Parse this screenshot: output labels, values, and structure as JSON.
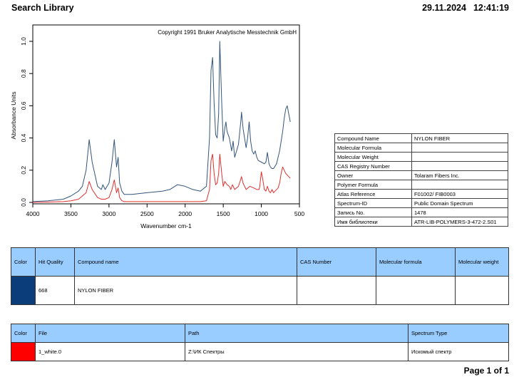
{
  "header": {
    "title": "Search Library",
    "date": "29.11.2024",
    "time": "12:41:19"
  },
  "chart_data": {
    "type": "line",
    "copyright": "Copyright 1991 Bruker Analytische Messtechnik GmbH",
    "xlabel": "Wavenumber cm-1",
    "ylabel": "Absorbance Units",
    "xlim": [
      4000,
      500
    ],
    "ylim": [
      0,
      1.0
    ],
    "xticks": [
      "4000",
      "3500",
      "3000",
      "2500",
      "2000",
      "1500",
      "1000",
      "500"
    ],
    "yticks": [
      "0.0",
      "0.2",
      "0.4",
      "0.6",
      "0.8",
      "1.0"
    ],
    "series": [
      {
        "color": "#33557a",
        "x": [
          4000,
          3800,
          3600,
          3500,
          3400,
          3350,
          3300,
          3260,
          3220,
          3150,
          3100,
          3080,
          3050,
          3000,
          2960,
          2930,
          2900,
          2880,
          2860,
          2830,
          2800,
          2700,
          2500,
          2300,
          2200,
          2100,
          2000,
          1900,
          1800,
          1720,
          1680,
          1660,
          1640,
          1620,
          1600,
          1580,
          1560,
          1545,
          1520,
          1500,
          1480,
          1465,
          1450,
          1420,
          1390,
          1370,
          1350,
          1300,
          1270,
          1260,
          1240,
          1200,
          1180,
          1160,
          1140,
          1120,
          1100,
          1080,
          1060,
          1040,
          1000,
          960,
          940,
          920,
          900,
          880,
          860,
          840,
          800,
          760,
          720,
          700,
          690,
          680,
          660,
          640,
          620
        ],
        "y": [
          0.005,
          0.01,
          0.02,
          0.04,
          0.07,
          0.1,
          0.2,
          0.39,
          0.25,
          0.1,
          0.08,
          0.11,
          0.08,
          0.12,
          0.25,
          0.39,
          0.22,
          0.28,
          0.12,
          0.07,
          0.05,
          0.05,
          0.06,
          0.07,
          0.08,
          0.11,
          0.1,
          0.08,
          0.07,
          0.1,
          0.4,
          0.82,
          0.9,
          0.62,
          0.42,
          0.4,
          0.55,
          1.0,
          0.62,
          0.38,
          0.46,
          0.5,
          0.44,
          0.4,
          0.32,
          0.38,
          0.28,
          0.36,
          0.5,
          0.56,
          0.46,
          0.34,
          0.4,
          0.5,
          0.38,
          0.32,
          0.3,
          0.32,
          0.28,
          0.26,
          0.25,
          0.24,
          0.25,
          0.31,
          0.24,
          0.22,
          0.21,
          0.21,
          0.24,
          0.32,
          0.44,
          0.52,
          0.55,
          0.58,
          0.6,
          0.55,
          0.5
        ]
      },
      {
        "color": "#e03030",
        "x": [
          4000,
          3800,
          3600,
          3500,
          3400,
          3350,
          3300,
          3260,
          3220,
          3150,
          3100,
          3050,
          3000,
          2960,
          2930,
          2900,
          2880,
          2860,
          2830,
          2800,
          2600,
          2400,
          2200,
          2000,
          1800,
          1720,
          1680,
          1660,
          1640,
          1620,
          1600,
          1580,
          1560,
          1545,
          1520,
          1500,
          1480,
          1450,
          1420,
          1400,
          1380,
          1350,
          1300,
          1280,
          1260,
          1240,
          1200,
          1150,
          1100,
          1060,
          1030,
          1020,
          1000,
          980,
          960,
          940,
          920,
          900,
          880,
          860,
          840,
          820,
          780,
          760,
          740,
          720,
          700,
          680,
          660,
          640,
          620
        ],
        "y": [
          0.0,
          0.002,
          0.005,
          0.01,
          0.02,
          0.04,
          0.06,
          0.13,
          0.08,
          0.03,
          0.02,
          0.02,
          0.03,
          0.08,
          0.14,
          0.06,
          0.09,
          0.03,
          0.01,
          0.005,
          0.005,
          0.005,
          0.005,
          0.005,
          0.005,
          0.01,
          0.08,
          0.26,
          0.3,
          0.18,
          0.11,
          0.12,
          0.18,
          0.3,
          0.18,
          0.1,
          0.13,
          0.11,
          0.1,
          0.08,
          0.11,
          0.08,
          0.1,
          0.13,
          0.16,
          0.12,
          0.08,
          0.1,
          0.09,
          0.08,
          0.08,
          0.1,
          0.19,
          0.14,
          0.08,
          0.07,
          0.1,
          0.07,
          0.06,
          0.08,
          0.06,
          0.07,
          0.09,
          0.12,
          0.18,
          0.22,
          0.2,
          0.18,
          0.17,
          0.16,
          0.15
        ]
      }
    ]
  },
  "info_table": [
    {
      "key": "Compound Name",
      "value": "NYLON FIBER"
    },
    {
      "key": "Molecular Formula",
      "value": ""
    },
    {
      "key": "Molecular Weight",
      "value": ""
    },
    {
      "key": "CAS Registry Number",
      "value": ""
    },
    {
      "key": "Owner",
      "value": "Tolaram Fibers Inc."
    },
    {
      "key": "Polymer Formula",
      "value": ""
    },
    {
      "key": "Atlas Reference",
      "value": "F01002/ FIB0003"
    },
    {
      "key": "Spectrum-ID",
      "value": "Public Domain Spectrum"
    },
    {
      "key": "Запись No.",
      "value": "1478"
    },
    {
      "key": "Имя библиотеки",
      "value": "ATR-LIB-POLYMERS-3-472-2.S01"
    }
  ],
  "hits_table": {
    "headers": [
      "Color",
      "Hit Quality",
      "Compound name",
      "CAS Number",
      "Molecular formula",
      "Molecular weight"
    ],
    "rows": [
      {
        "color": "#0a3d7a",
        "hit_quality": "668",
        "compound_name": "NYLON FIBER",
        "cas_number": "",
        "molecular_formula": "",
        "molecular_weight": ""
      }
    ]
  },
  "files_table": {
    "headers": [
      "Color",
      "File",
      "Path",
      "Spectrum Type"
    ],
    "rows": [
      {
        "color": "#ff0000",
        "file": "1_white.0",
        "path": "Z:\\ИК Спектры",
        "spectrum_type": "Искомый спектр"
      }
    ]
  },
  "footer": {
    "page": "Page 1 of 1"
  }
}
